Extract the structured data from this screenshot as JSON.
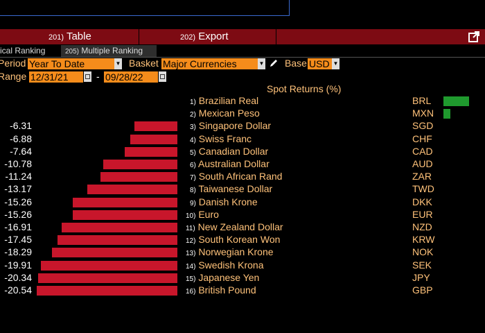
{
  "menu": {
    "table": {
      "num": "201)",
      "label": "Table"
    },
    "export": {
      "num": "202)",
      "label": "Export"
    }
  },
  "tabs": [
    {
      "num": "",
      "label": "ical Ranking"
    },
    {
      "num": "205)",
      "label": "Multiple Ranking"
    }
  ],
  "controls": {
    "period_label": "Period",
    "period_value": "Year To Date",
    "basket_label": "Basket",
    "basket_value": "Major Currencies",
    "base_label": "Base",
    "base_value": "USD",
    "range_label": "Range",
    "range_start": "12/31/21",
    "range_sep": "-",
    "range_end": "09/28/22"
  },
  "colors": {
    "positive": "#1f9a2e",
    "negative": "#c8162b",
    "accent": "#f58c1b"
  },
  "chart_data": {
    "type": "bar",
    "title": "Spot Returns (%)",
    "categories": [
      "Brazilian Real",
      "Mexican Peso",
      "Singapore Dollar",
      "Swiss Franc",
      "Canadian Dollar",
      "Australian Dollar",
      "South African Rand",
      "Taiwanese Dollar",
      "Danish Krone",
      "Euro",
      "New Zealand Dollar",
      "South Korean Won",
      "Norwegian Krone",
      "Swedish Krona",
      "Japanese Yen",
      "British Pound"
    ],
    "codes": [
      "BRL",
      "MXN",
      "SGD",
      "CHF",
      "CAD",
      "AUD",
      "ZAR",
      "TWD",
      "DKK",
      "EUR",
      "NZD",
      "KRW",
      "NOK",
      "SEK",
      "JPY",
      "GBP"
    ],
    "values": [
      6.0,
      1.6,
      -6.31,
      -6.88,
      -7.64,
      -10.78,
      -11.24,
      -13.17,
      -15.26,
      -15.26,
      -16.91,
      -17.45,
      -18.29,
      -19.91,
      -20.34,
      -20.54
    ],
    "value_labels": [
      "",
      "",
      "-6.31",
      "-6.88",
      "-7.64",
      "-10.78",
      "-11.24",
      "-13.17",
      "-15.26",
      "-15.26",
      "-16.91",
      "-17.45",
      "-18.29",
      "-19.91",
      "-20.34",
      "-20.54"
    ],
    "row_numbers": [
      "1)",
      "2)",
      "3)",
      "4)",
      "5)",
      "6)",
      "7)",
      "8)",
      "9)",
      "10)",
      "11)",
      "12)",
      "13)",
      "14)",
      "15)",
      "16)"
    ]
  }
}
